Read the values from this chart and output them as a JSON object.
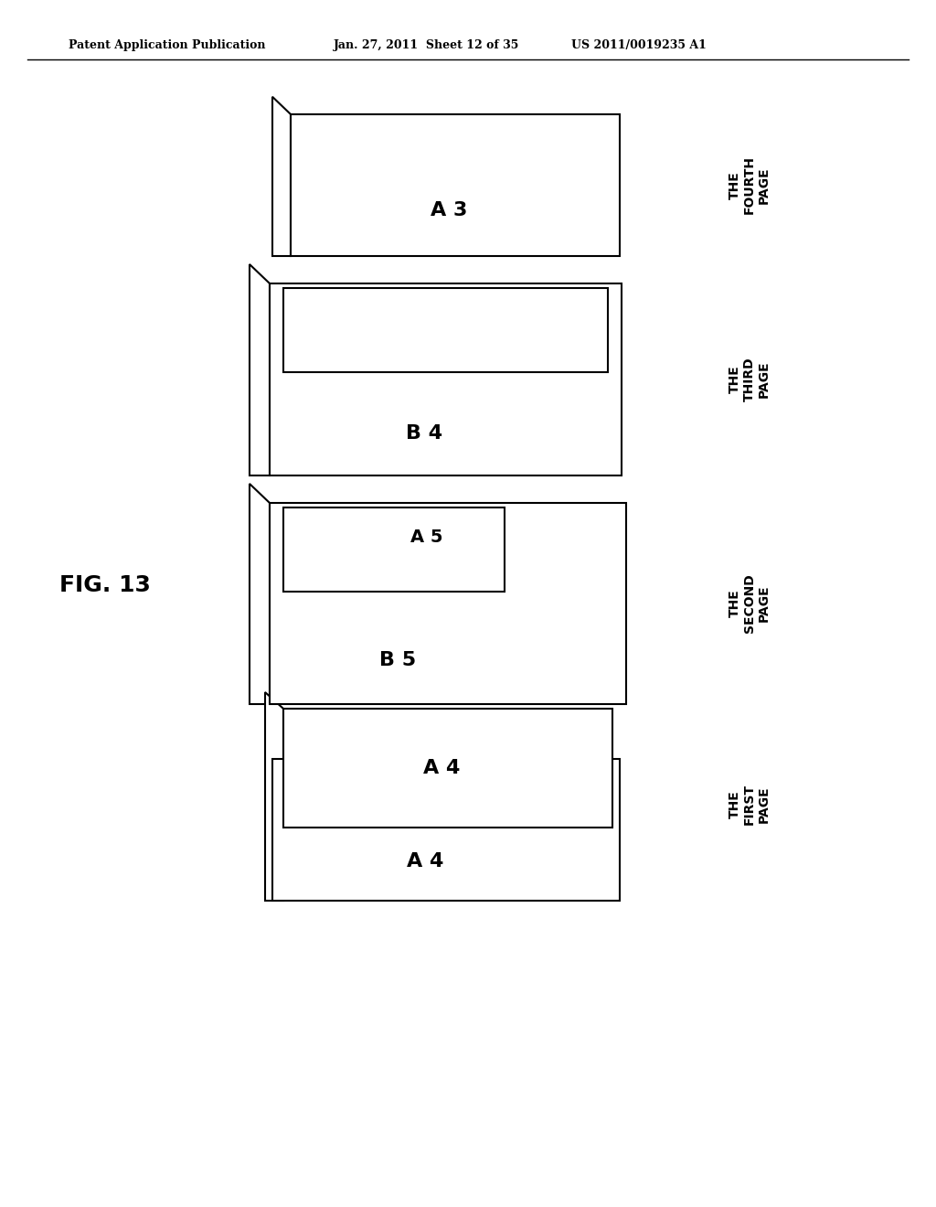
{
  "header_left": "Patent Application Publication",
  "header_mid": "Jan. 27, 2011  Sheet 12 of 35",
  "header_right": "US 2011/0019235 A1",
  "fig_label": "FIG. 13",
  "bg_color": "#ffffff",
  "line_color": "#000000",
  "page_labels": [
    "THE\nFOURTH\nPAGE",
    "THE\nTHIRD\nPAGE",
    "THE\nSECOND\nPAGE",
    "THE\nFIRST\nPAGE"
  ]
}
